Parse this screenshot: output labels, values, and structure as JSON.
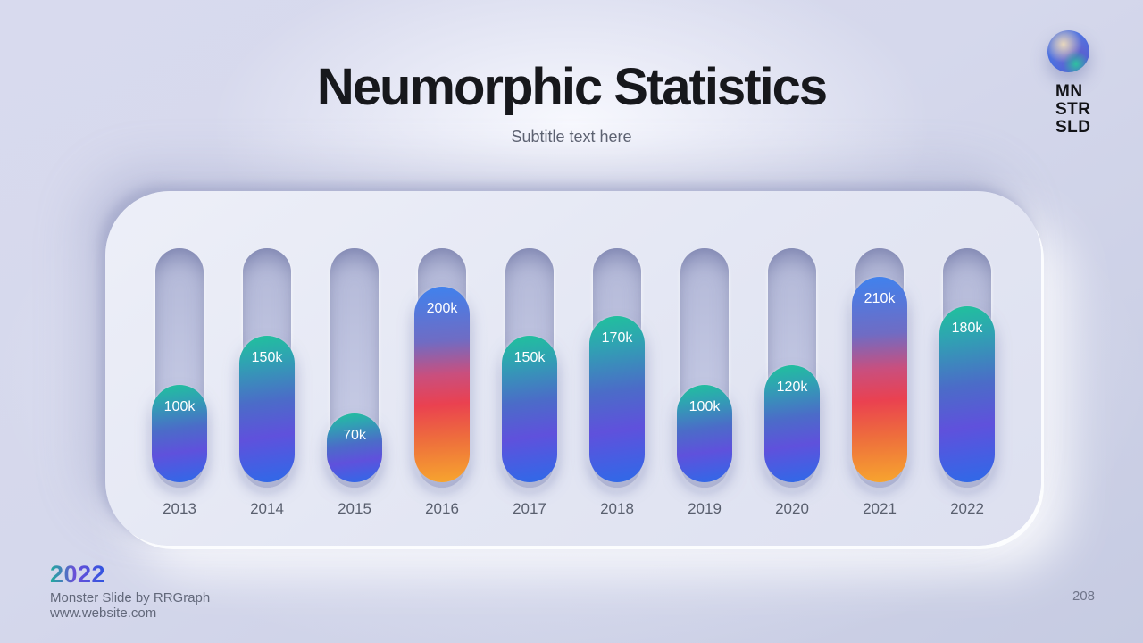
{
  "header": {
    "title": "Neumorphic Statistics",
    "subtitle": "Subtitle text here"
  },
  "logo": {
    "icon": "gradient-sphere-icon",
    "lines": [
      "MN",
      "STR",
      "SLD"
    ]
  },
  "chart_data": {
    "type": "bar",
    "title": "Neumorphic Statistics",
    "xlabel": "",
    "ylabel": "",
    "categories": [
      "2013",
      "2014",
      "2015",
      "2016",
      "2017",
      "2018",
      "2019",
      "2020",
      "2021",
      "2022"
    ],
    "values": [
      100000,
      150000,
      70000,
      200000,
      150000,
      170000,
      100000,
      120000,
      210000,
      180000
    ],
    "value_labels": [
      "100k",
      "150k",
      "70k",
      "200k",
      "150k",
      "170k",
      "100k",
      "120k",
      "210k",
      "180k"
    ],
    "ylim": [
      0,
      245000
    ],
    "grid": false,
    "legend": "none",
    "bar_variants": [
      "cool",
      "cool",
      "cool",
      "warm",
      "cool",
      "cool",
      "cool",
      "cool",
      "warm",
      "cool"
    ],
    "colors": {
      "cool_gradient": [
        "#1fc39b 0%",
        "#2fa3b2 18%",
        "#4b6cc8 45%",
        "#5f51dc 68%",
        "#2e6ae8 100%"
      ],
      "warm_gradient": [
        "#3f82ee 0%",
        "#6f6cc4 28%",
        "#c94f7e 45%",
        "#ea4150 60%",
        "#ee6f3c 78%",
        "#f7a62e 100%"
      ],
      "track": "#bfc4e0",
      "panel": "#e3e6f3",
      "background": "#d5d8ec",
      "title_text": "#17181c",
      "year_text": "#595f6e",
      "value_text": "#ffffff"
    }
  },
  "footer": {
    "year": "2022",
    "credit": "Monster Slide by RRGraph",
    "website": "www.website.com",
    "page_number": "208"
  }
}
